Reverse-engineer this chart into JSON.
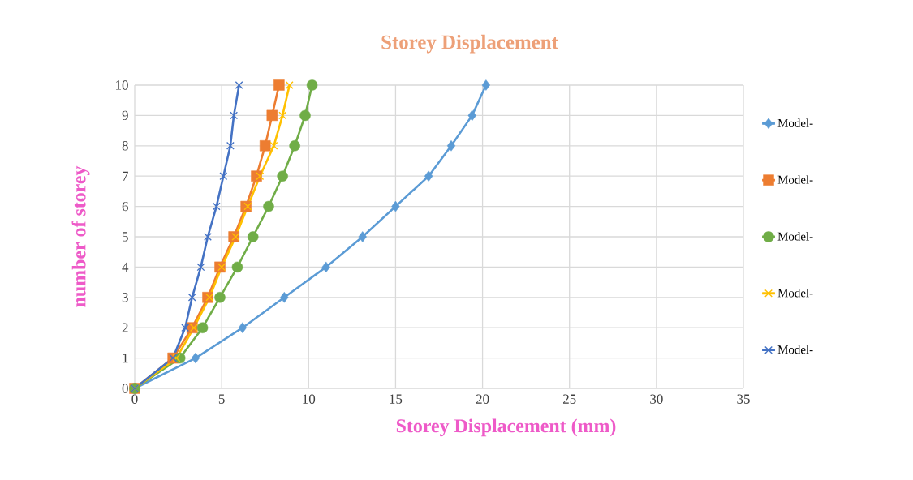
{
  "chart_data": {
    "type": "line",
    "title": "Storey  Displacement",
    "xlabel": "Storey  Displacement  (mm)",
    "ylabel": "number  of  storey",
    "xlim": [
      0,
      35
    ],
    "xticks": [
      0,
      5,
      10,
      15,
      20,
      25,
      30,
      35
    ],
    "ylim": [
      0,
      10
    ],
    "yticks": [
      0,
      1,
      2,
      3,
      4,
      5,
      6,
      7,
      8,
      9,
      10
    ],
    "grid": true,
    "legend": "right",
    "line_style": "solid",
    "series": [
      {
        "name": "Model-",
        "color": "#5b9bd5",
        "marker": "diamond",
        "x": [
          0,
          3.5,
          6.2,
          8.6,
          11.0,
          13.1,
          15.0,
          16.9,
          18.2,
          19.4,
          20.2
        ],
        "values": [
          0,
          1,
          2,
          3,
          4,
          5,
          6,
          7,
          8,
          9,
          10
        ]
      },
      {
        "name": "Model-",
        "color": "#ed7d31",
        "marker": "square",
        "x": [
          0,
          2.2,
          3.3,
          4.2,
          4.9,
          5.7,
          6.4,
          7.0,
          7.5,
          7.9,
          8.3
        ],
        "values": [
          0,
          1,
          2,
          3,
          4,
          5,
          6,
          7,
          8,
          9,
          10
        ]
      },
      {
        "name": "Model-",
        "color": "#70ad47",
        "marker": "circle",
        "x": [
          0,
          2.6,
          3.9,
          4.9,
          5.9,
          6.8,
          7.7,
          8.5,
          9.2,
          9.8,
          10.2
        ],
        "values": [
          0,
          1,
          2,
          3,
          4,
          5,
          6,
          7,
          8,
          9,
          10
        ]
      },
      {
        "name": "Model-",
        "color": "#ffc000",
        "marker": "cross",
        "x": [
          0,
          2.4,
          3.4,
          4.3,
          5.0,
          5.8,
          6.5,
          7.2,
          8.0,
          8.5,
          8.9
        ],
        "values": [
          0,
          1,
          2,
          3,
          4,
          5,
          6,
          7,
          8,
          9,
          10
        ]
      },
      {
        "name": "Model-",
        "color": "#4472c4",
        "marker": "cross",
        "x": [
          0,
          2.2,
          2.9,
          3.3,
          3.8,
          4.2,
          4.7,
          5.1,
          5.5,
          5.7,
          6.0
        ],
        "values": [
          0,
          1,
          2,
          3,
          4,
          5,
          6,
          7,
          8,
          9,
          10
        ]
      }
    ]
  }
}
